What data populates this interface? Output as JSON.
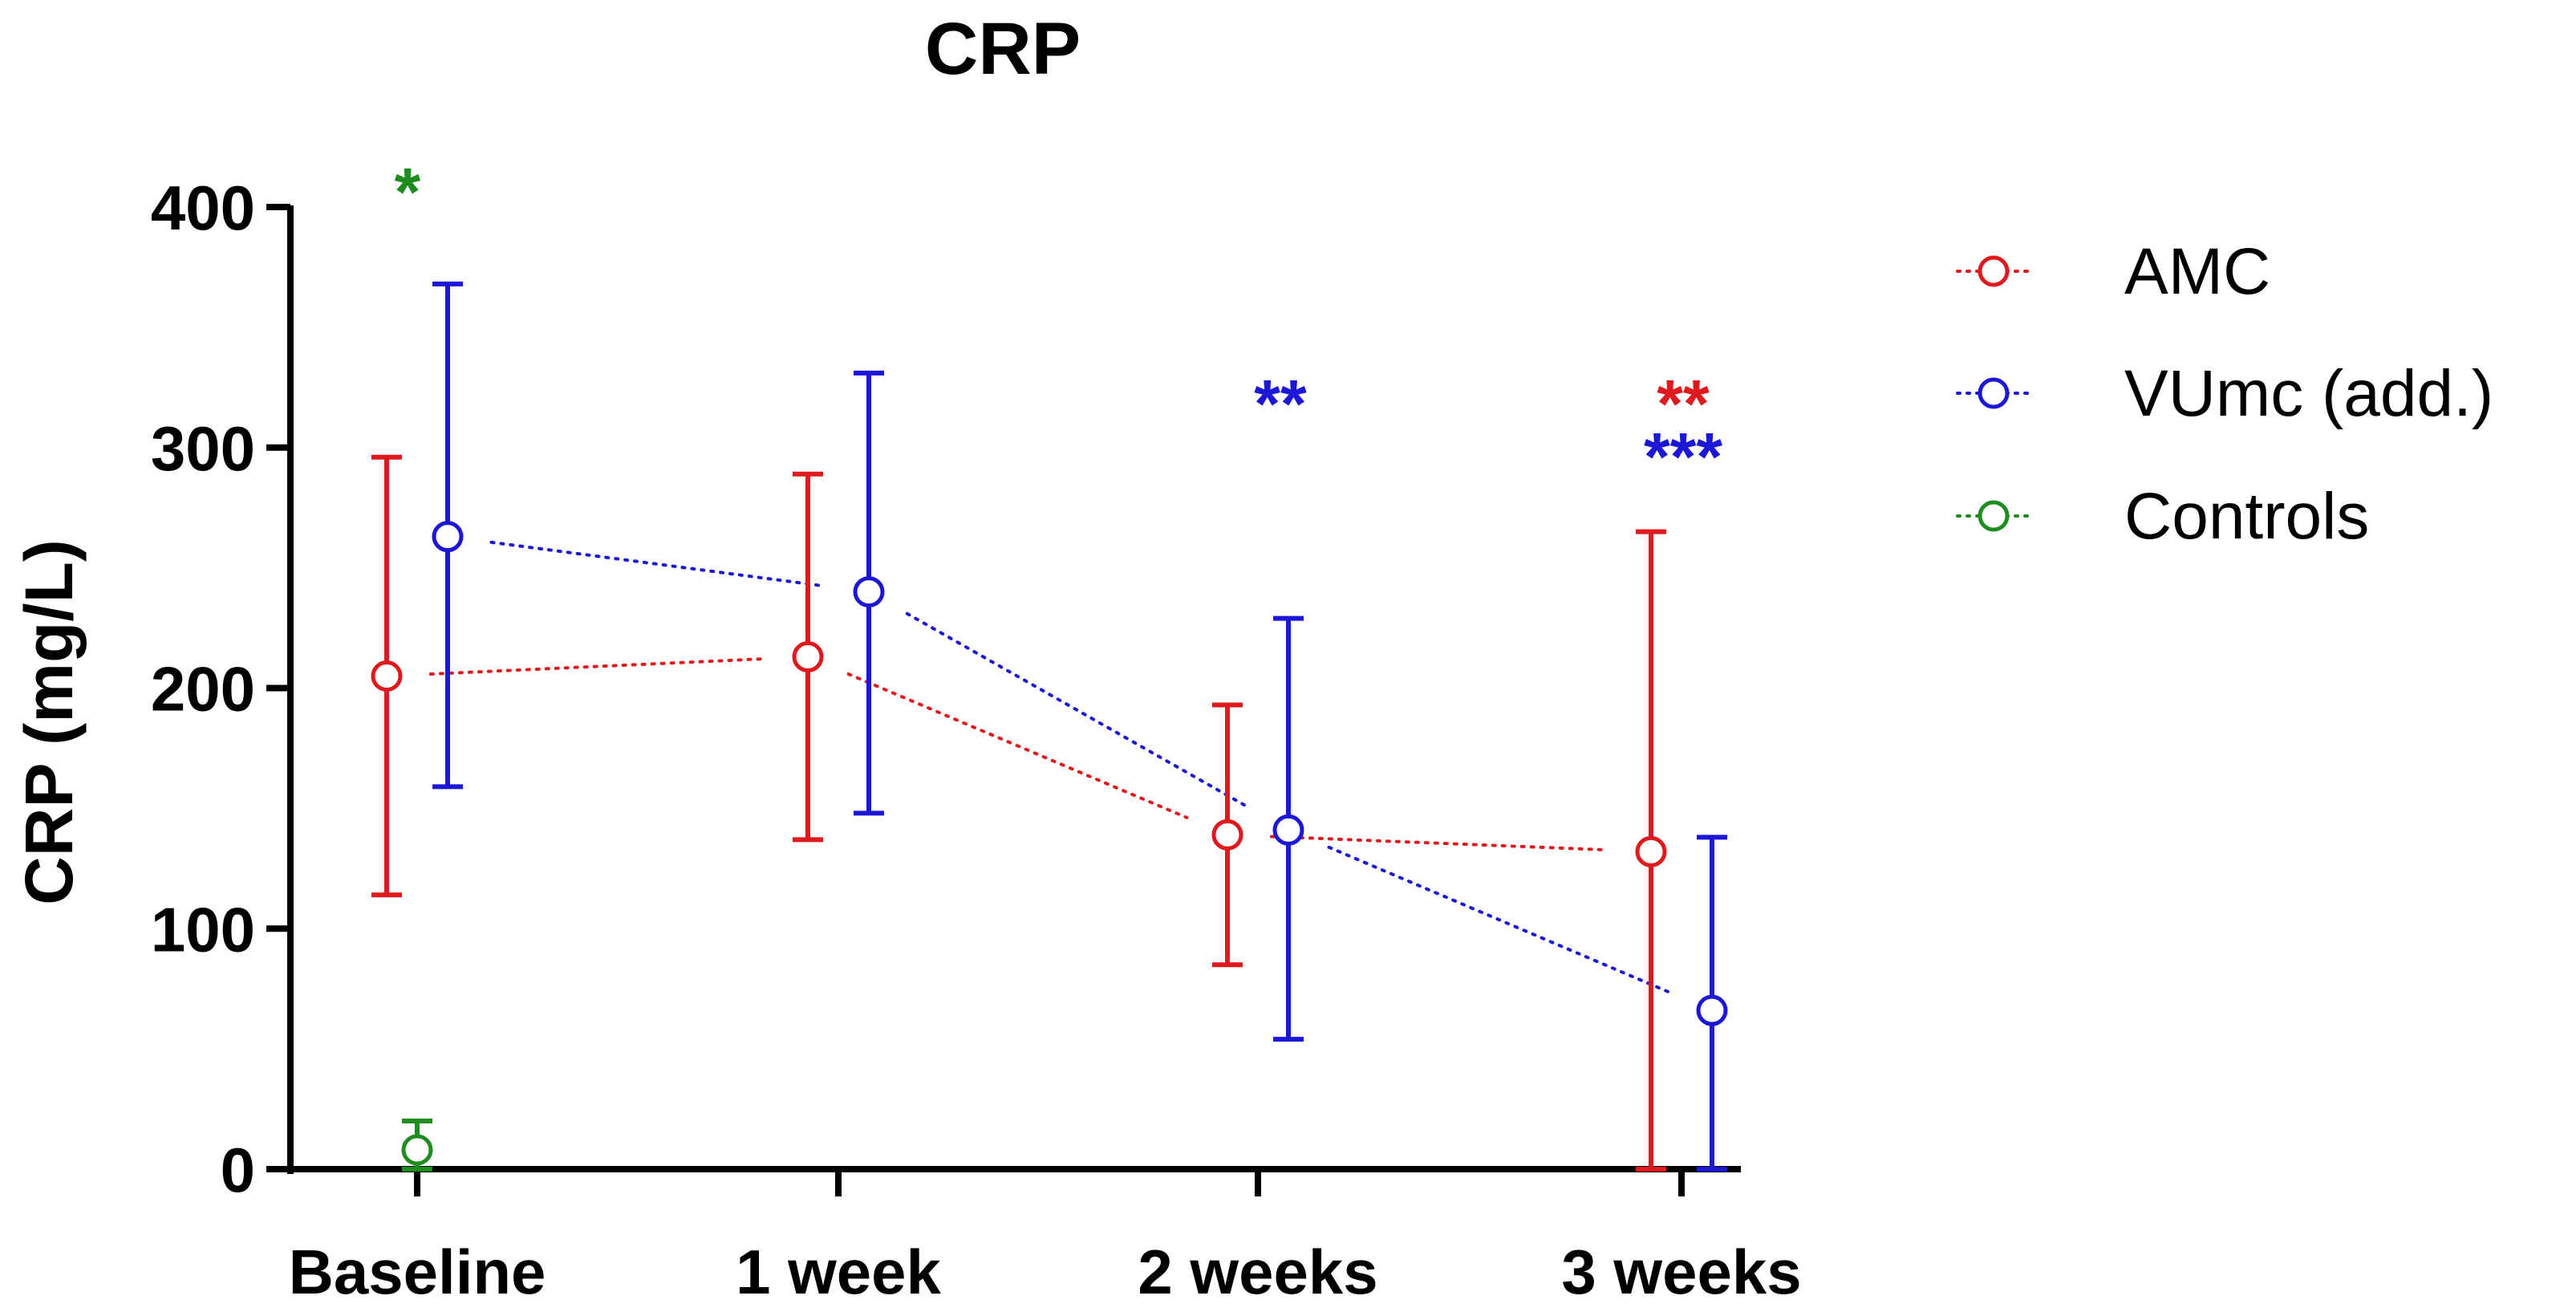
{
  "chart_data": {
    "type": "line",
    "title": "CRP",
    "xlabel": "",
    "ylabel": "CRP (mg/L)",
    "ylim": [
      0,
      400
    ],
    "yticks": [
      0,
      100,
      200,
      300,
      400
    ],
    "categories": [
      "Baseline",
      "1 week",
      "2 weeks",
      "3 weeks"
    ],
    "legend_position": "right",
    "grid": false,
    "series": [
      {
        "name": "AMC",
        "color": "#e0191e",
        "marker": "open-circle",
        "line_style": "dotted",
        "values": [
          205,
          213,
          139,
          132
        ],
        "lower": [
          114,
          137,
          85,
          0
        ],
        "upper": [
          296,
          289,
          193,
          265
        ]
      },
      {
        "name": "VUmc (add.)",
        "color": "#1c16d6",
        "marker": "open-circle",
        "line_style": "dotted",
        "values": [
          263,
          240,
          141,
          66
        ],
        "lower": [
          159,
          148,
          54,
          0
        ],
        "upper": [
          368,
          331,
          229,
          138
        ]
      },
      {
        "name": "Controls",
        "color": "#1f8c1f",
        "marker": "open-circle",
        "line_style": "dotted",
        "values": [
          8,
          null,
          null,
          null
        ],
        "lower": [
          0,
          null,
          null,
          null
        ],
        "upper": [
          20,
          null,
          null,
          null
        ]
      }
    ],
    "annotations": [
      {
        "text": "*",
        "category": "Baseline",
        "color": "#1f8c1f",
        "level": 410
      },
      {
        "text": "**",
        "category": "2 weeks",
        "color": "#1c16d6",
        "level": 322
      },
      {
        "text": "**",
        "category": "3 weeks",
        "color": "#e0191e",
        "level": 322
      },
      {
        "text": "***",
        "category": "3 weeks",
        "color": "#1c16d6",
        "level": 300
      }
    ]
  }
}
